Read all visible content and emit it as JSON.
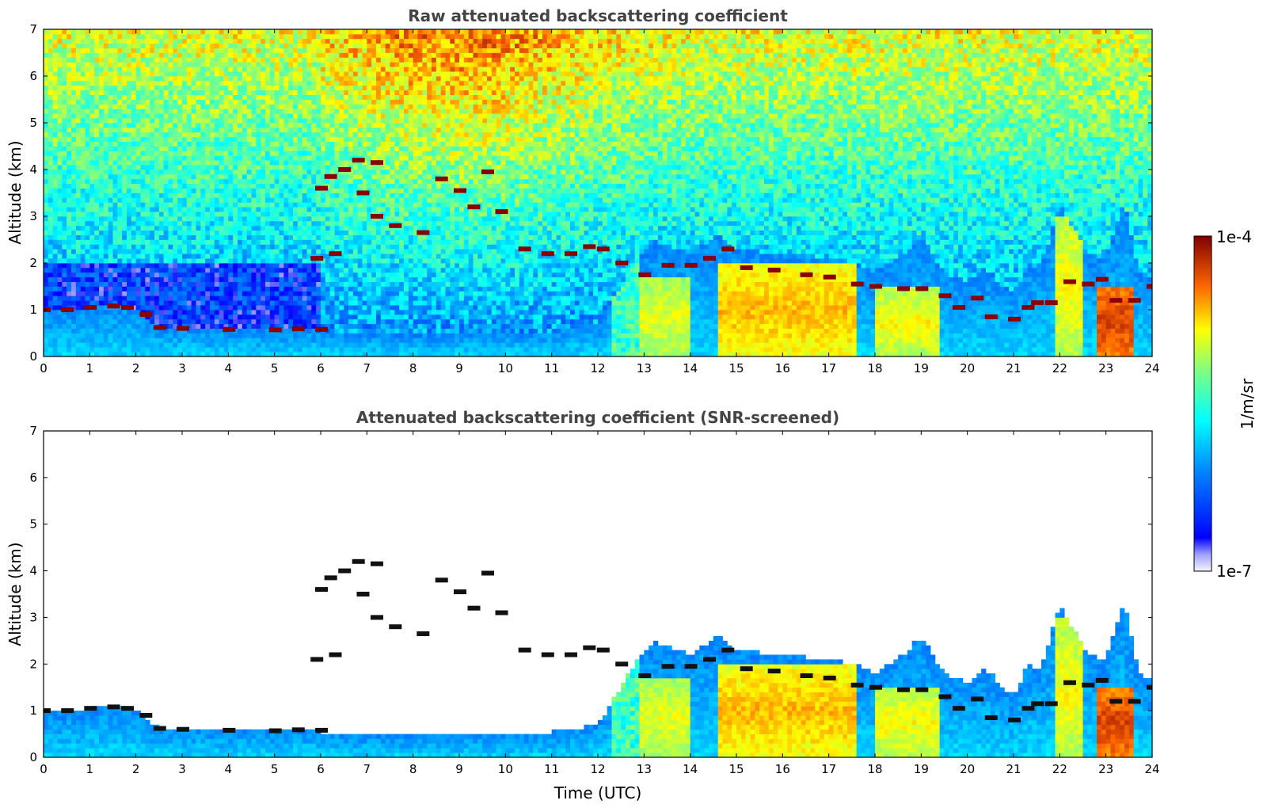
{
  "chart_data": [
    {
      "type": "heatmap",
      "title": "Raw attenuated backscattering coefficient",
      "xlabel": "",
      "ylabel": "Altitude (km)",
      "xlim": [
        0,
        24
      ],
      "ylim": [
        0,
        7
      ],
      "x_ticks": [
        "0",
        "1",
        "2",
        "3",
        "4",
        "5",
        "6",
        "7",
        "8",
        "9",
        "10",
        "11",
        "12",
        "13",
        "14",
        "15",
        "16",
        "17",
        "18",
        "19",
        "20",
        "21",
        "22",
        "23",
        "24"
      ],
      "y_ticks": [
        "0",
        "1",
        "2",
        "3",
        "4",
        "5",
        "6",
        "7"
      ],
      "screened": false,
      "layer_top_km": [
        [
          0,
          1.0
        ],
        [
          1,
          1.05
        ],
        [
          1.7,
          1.1
        ],
        [
          2.1,
          0.95
        ],
        [
          2.5,
          0.62
        ],
        [
          3,
          0.6
        ],
        [
          4,
          0.57
        ],
        [
          5,
          0.56
        ],
        [
          5.5,
          0.6
        ],
        [
          6,
          0.55
        ],
        [
          6.5,
          0.5
        ],
        [
          8,
          0.45
        ],
        [
          10,
          0.5
        ],
        [
          11,
          0.55
        ],
        [
          12,
          0.7
        ],
        [
          12.3,
          1.2
        ],
        [
          12.8,
          2.0
        ],
        [
          13.2,
          2.5
        ],
        [
          14,
          2.2
        ],
        [
          14.6,
          2.6
        ],
        [
          15,
          2.3
        ],
        [
          16,
          2.2
        ],
        [
          17,
          2.1
        ],
        [
          17.6,
          2.0
        ],
        [
          18,
          1.8
        ],
        [
          18.6,
          2.2
        ],
        [
          19,
          2.6
        ],
        [
          19.5,
          1.8
        ],
        [
          20,
          1.6
        ],
        [
          20.4,
          1.9
        ],
        [
          21,
          1.3
        ],
        [
          21.3,
          2.0
        ],
        [
          21.6,
          1.9
        ],
        [
          22,
          3.3
        ],
        [
          22.6,
          2.2
        ],
        [
          23,
          2.1
        ],
        [
          23.4,
          3.4
        ],
        [
          23.7,
          1.8
        ],
        [
          24,
          1.7
        ]
      ],
      "bright_cores": [
        {
          "t0": 12.9,
          "t1": 14.0,
          "alt0": 0,
          "alt1": 1.7,
          "level": 0.7
        },
        {
          "t0": 14.6,
          "t1": 17.6,
          "alt0": 0,
          "alt1": 2.0,
          "level": 0.78
        },
        {
          "t0": 18.0,
          "t1": 19.4,
          "alt0": 0,
          "alt1": 1.5,
          "level": 0.72
        },
        {
          "t0": 21.9,
          "t1": 22.5,
          "alt0": 0,
          "alt1": 3.0,
          "level": 0.72
        },
        {
          "t0": 22.8,
          "t1": 23.6,
          "alt0": 0,
          "alt1": 1.5,
          "level": 0.9
        }
      ],
      "cloud_layers": [
        [
          0.0,
          1.0
        ],
        [
          0.5,
          1.0
        ],
        [
          1.0,
          1.05
        ],
        [
          1.5,
          1.08
        ],
        [
          1.8,
          1.05
        ],
        [
          2.2,
          0.9
        ],
        [
          2.5,
          0.62
        ],
        [
          3.0,
          0.6
        ],
        [
          4.0,
          0.58
        ],
        [
          5.0,
          0.57
        ],
        [
          5.5,
          0.59
        ],
        [
          6.0,
          0.58
        ],
        [
          6.0,
          3.6
        ],
        [
          6.2,
          3.85
        ],
        [
          6.5,
          4.0
        ],
        [
          6.8,
          4.2
        ],
        [
          7.2,
          4.15
        ],
        [
          6.9,
          3.5
        ],
        [
          7.2,
          3.0
        ],
        [
          7.6,
          2.8
        ],
        [
          8.2,
          2.65
        ],
        [
          8.6,
          3.8
        ],
        [
          9.0,
          3.55
        ],
        [
          9.3,
          3.2
        ],
        [
          9.6,
          3.95
        ],
        [
          9.9,
          3.1
        ],
        [
          10.4,
          2.3
        ],
        [
          10.9,
          2.2
        ],
        [
          11.4,
          2.2
        ],
        [
          11.8,
          2.35
        ],
        [
          12.1,
          2.3
        ],
        [
          5.9,
          2.1
        ],
        [
          6.3,
          2.2
        ],
        [
          12.5,
          2.0
        ],
        [
          13.0,
          1.75
        ],
        [
          13.5,
          1.95
        ],
        [
          14.0,
          1.95
        ],
        [
          14.4,
          2.1
        ],
        [
          14.8,
          2.3
        ],
        [
          15.2,
          1.9
        ],
        [
          15.8,
          1.85
        ],
        [
          16.5,
          1.75
        ],
        [
          17.0,
          1.7
        ],
        [
          17.6,
          1.55
        ],
        [
          18.0,
          1.5
        ],
        [
          18.6,
          1.45
        ],
        [
          19.0,
          1.45
        ],
        [
          19.5,
          1.3
        ],
        [
          19.8,
          1.05
        ],
        [
          20.2,
          1.25
        ],
        [
          20.5,
          0.85
        ],
        [
          21.0,
          0.8
        ],
        [
          21.3,
          1.05
        ],
        [
          21.5,
          1.15
        ],
        [
          21.8,
          1.15
        ],
        [
          22.2,
          1.6
        ],
        [
          22.6,
          1.55
        ],
        [
          22.9,
          1.65
        ],
        [
          23.2,
          1.2
        ],
        [
          23.6,
          1.2
        ],
        [
          24.0,
          1.5
        ]
      ]
    },
    {
      "type": "heatmap",
      "title": "Attenuated backscattering coefficient (SNR-screened)",
      "xlabel": "Time (UTC)",
      "ylabel": "Altitude (km)",
      "xlim": [
        0,
        24
      ],
      "ylim": [
        0,
        7
      ],
      "x_ticks": [
        "0",
        "1",
        "2",
        "3",
        "4",
        "5",
        "6",
        "7",
        "8",
        "9",
        "10",
        "11",
        "12",
        "13",
        "14",
        "15",
        "16",
        "17",
        "18",
        "19",
        "20",
        "21",
        "22",
        "23",
        "24"
      ],
      "y_ticks": [
        "0",
        "1",
        "2",
        "3",
        "4",
        "5",
        "6",
        "7"
      ],
      "screened": true
    }
  ],
  "colorbar": {
    "label": "1/m/sr",
    "min_label": "1e-7",
    "max_label": "1e-4",
    "colormap": "jet",
    "scale": "log"
  }
}
